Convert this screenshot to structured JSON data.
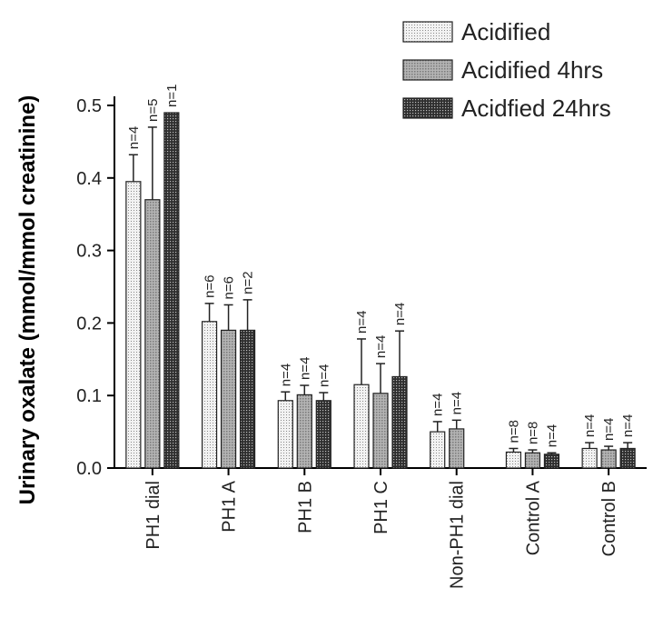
{
  "chart_data": {
    "type": "bar",
    "title": "",
    "xlabel": "",
    "ylabel": "Urinary oxalate (mmol/mmol creatinine)",
    "ylim": [
      0,
      0.5
    ],
    "yticks": [
      "0.0",
      "0.1",
      "0.2",
      "0.3",
      "0.4",
      "0.5"
    ],
    "categories": [
      "PH1 dial",
      "PH1 A",
      "PH1 B",
      "PH1 C",
      "Non-PH1 dial",
      "Control A",
      "Control B"
    ],
    "legend_position": "top-right",
    "series": [
      {
        "name": "Acidified",
        "pattern": "fine-dots",
        "color": "#e6e6e6",
        "values": [
          0.395,
          0.202,
          0.093,
          0.115,
          0.05,
          0.022,
          0.027
        ],
        "errors": [
          0.037,
          0.025,
          0.012,
          0.063,
          0.014,
          0.005,
          0.008
        ],
        "n": [
          "n=4",
          "n=6",
          "n=4",
          "n=4",
          "n=4",
          "n=8",
          "n=4"
        ]
      },
      {
        "name": "Acidified 4hrs",
        "pattern": "medium-gray",
        "color": "#a8a8a8",
        "values": [
          0.37,
          0.19,
          0.101,
          0.103,
          0.054,
          0.021,
          0.025
        ],
        "errors": [
          0.1,
          0.035,
          0.013,
          0.041,
          0.012,
          0.004,
          0.005
        ],
        "n": [
          "n=5",
          "n=6",
          "n=4",
          "n=4",
          "n=4",
          "n=8",
          "n=4"
        ]
      },
      {
        "name": "Acidfied 24hrs",
        "pattern": "dark-grid",
        "color": "#555555",
        "values": [
          0.49,
          0.19,
          0.093,
          0.126,
          null,
          0.019,
          0.027
        ],
        "errors": [
          0,
          0.042,
          0.011,
          0.063,
          null,
          0.002,
          0.008
        ],
        "n": [
          "n=1",
          "n=2",
          "n=4",
          "n=4",
          null,
          "n=4",
          "n=4"
        ]
      }
    ]
  }
}
